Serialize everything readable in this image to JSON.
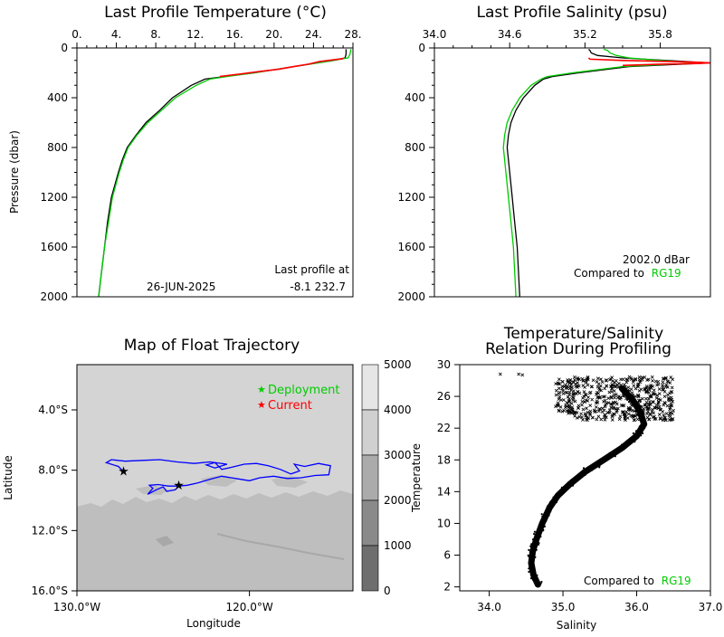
{
  "chart_data": [
    {
      "type": "line",
      "title": "Last Profile Temperature (°C)",
      "ylabel": "Pressure (dbar)",
      "xlim": [
        0,
        28
      ],
      "ylim": [
        2000,
        0
      ],
      "x_ticks": [
        "0.",
        "4.",
        "8.",
        "12.",
        "16.",
        "20.",
        "24.",
        "28."
      ],
      "y_ticks": [
        "0",
        "400",
        "800",
        "1200",
        "1600",
        "2000"
      ],
      "annotation_line1": "Last profile at",
      "annotation_date": "26-JUN-2025",
      "annotation_coords": "-8.1 232.7",
      "series": [
        {
          "color": "#000000",
          "pressure": [
            2000,
            1800,
            1600,
            1400,
            1200,
            1000,
            900,
            800,
            700,
            600,
            500,
            400,
            300,
            250,
            230,
            200,
            150,
            100,
            80,
            50,
            10
          ],
          "values": [
            2.2,
            2.5,
            2.8,
            3.1,
            3.5,
            4.2,
            4.6,
            5.1,
            6.0,
            7.0,
            8.4,
            9.7,
            11.6,
            13.0,
            15.0,
            18.0,
            22.0,
            26.0,
            27.2,
            27.3,
            27.3
          ]
        },
        {
          "color": "#00cc00",
          "pressure": [
            2000,
            1800,
            1600,
            1400,
            1200,
            1000,
            900,
            800,
            700,
            600,
            500,
            400,
            300,
            250,
            230,
            200,
            150,
            100,
            80,
            50,
            10
          ],
          "values": [
            2.2,
            2.5,
            2.8,
            3.2,
            3.6,
            4.3,
            4.7,
            5.2,
            6.1,
            7.2,
            8.6,
            10.0,
            12.1,
            13.5,
            15.2,
            18.0,
            22.0,
            26.0,
            27.5,
            27.7,
            27.8
          ]
        },
        {
          "color": "#ff0000",
          "pressure": [
            230,
            210,
            190,
            170,
            150,
            130,
            110,
            100,
            90,
            85
          ],
          "values": [
            14.5,
            16.5,
            18.5,
            20.5,
            22.0,
            23.5,
            24.6,
            25.5,
            26.5,
            27.0
          ]
        }
      ]
    },
    {
      "type": "line",
      "title": "Last Profile Salinity (psu)",
      "xlim": [
        34.0,
        36.2
      ],
      "ylim": [
        2000,
        0
      ],
      "x_ticks": [
        "34.0",
        "34.6",
        "35.2",
        "35.8"
      ],
      "y_ticks": [
        "0",
        "400",
        "800",
        "1200",
        "1600",
        "2000"
      ],
      "annotation_line1": "2002.0 dBar",
      "annotation_compared": "Compared to",
      "annotation_ref": "RG19",
      "series": [
        {
          "color": "#000000",
          "pressure": [
            2000,
            1800,
            1600,
            1400,
            1200,
            1000,
            800,
            700,
            600,
            500,
            400,
            300,
            250,
            230,
            200,
            150,
            120,
            100,
            80,
            60,
            40,
            20,
            10
          ],
          "values": [
            34.68,
            34.67,
            34.66,
            34.64,
            34.62,
            34.6,
            34.58,
            34.59,
            34.61,
            34.65,
            34.71,
            34.8,
            34.87,
            34.94,
            35.15,
            35.55,
            36.2,
            35.85,
            35.5,
            35.3,
            35.25,
            35.24,
            35.23
          ]
        },
        {
          "color": "#00cc00",
          "pressure": [
            2000,
            1800,
            1600,
            1400,
            1200,
            1000,
            800,
            700,
            600,
            500,
            400,
            300,
            250,
            230,
            200,
            150,
            120,
            100,
            80,
            60,
            40,
            20,
            10
          ],
          "values": [
            34.65,
            34.64,
            34.63,
            34.61,
            34.59,
            34.57,
            34.55,
            34.56,
            34.58,
            34.62,
            34.68,
            34.77,
            34.85,
            34.9,
            35.1,
            35.5,
            36.1,
            35.8,
            35.55,
            35.45,
            35.4,
            35.38,
            35.35
          ]
        },
        {
          "color": "#ff0000",
          "pressure": [
            80,
            90,
            100,
            110,
            115,
            120,
            125,
            130,
            140
          ],
          "values": [
            35.23,
            35.24,
            35.5,
            35.9,
            36.1,
            36.2,
            36.1,
            35.8,
            35.5
          ]
        }
      ]
    },
    {
      "type": "map",
      "title": "Map of Float Trajectory",
      "xlabel": "Longitude",
      "ylabel": "Latitude",
      "x_ticks": [
        "130.0°W",
        "120.0°W"
      ],
      "y_ticks": [
        "4.0°S",
        "8.0°S",
        "12.0°S",
        "16.0°S"
      ],
      "legend": [
        {
          "marker": "★",
          "label": "Deployment",
          "color": "#00cc00"
        },
        {
          "marker": "★",
          "label": "Current",
          "color": "#ff0000"
        }
      ],
      "colorbar_ticks": [
        "5000",
        "4000",
        "3000",
        "2000",
        "1000",
        "0"
      ],
      "colorbar_shades": [
        "#e6e6e6",
        "#d0d0d0",
        "#ababab",
        "#8a8a8a",
        "#6e6e6e",
        "#4d4d4d"
      ],
      "trajectory_color": "#0000ff",
      "deployment": {
        "lon": -124.1,
        "lat": -9.05
      },
      "current": {
        "lon": -127.3,
        "lat": -8.1
      },
      "trajectory": [
        [
          -124.1,
          -9.05
        ],
        [
          -124.3,
          -9.3
        ],
        [
          -124.8,
          -9.4
        ],
        [
          -125.0,
          -9.1
        ],
        [
          -125.4,
          -9.3
        ],
        [
          -125.9,
          -9.6
        ],
        [
          -125.6,
          -9.2
        ],
        [
          -125.8,
          -9.0
        ],
        [
          -125.3,
          -8.95
        ],
        [
          -124.7,
          -9.05
        ],
        [
          -124.1,
          -9.05
        ],
        [
          -123.6,
          -9.0
        ],
        [
          -123.0,
          -8.85
        ],
        [
          -122.3,
          -8.6
        ],
        [
          -121.6,
          -8.4
        ],
        [
          -120.8,
          -8.55
        ],
        [
          -120.0,
          -8.7
        ],
        [
          -119.4,
          -8.5
        ],
        [
          -118.6,
          -8.4
        ],
        [
          -117.8,
          -8.55
        ],
        [
          -117.0,
          -8.5
        ],
        [
          -116.2,
          -8.35
        ],
        [
          -115.4,
          -8.3
        ],
        [
          -115.3,
          -7.7
        ],
        [
          -116.0,
          -7.55
        ],
        [
          -116.8,
          -7.75
        ],
        [
          -117.4,
          -7.6
        ],
        [
          -117.1,
          -8.05
        ],
        [
          -117.6,
          -8.25
        ],
        [
          -118.2,
          -7.95
        ],
        [
          -118.9,
          -7.7
        ],
        [
          -119.6,
          -7.55
        ],
        [
          -120.3,
          -7.6
        ],
        [
          -121.0,
          -7.8
        ],
        [
          -121.6,
          -7.95
        ],
        [
          -122.0,
          -7.5
        ],
        [
          -122.5,
          -7.65
        ],
        [
          -122.0,
          -7.85
        ],
        [
          -121.3,
          -7.6
        ],
        [
          -122.3,
          -7.45
        ],
        [
          -123.2,
          -7.55
        ],
        [
          -124.2,
          -7.45
        ],
        [
          -125.2,
          -7.3
        ],
        [
          -126.2,
          -7.35
        ],
        [
          -127.2,
          -7.4
        ],
        [
          -128.0,
          -7.3
        ],
        [
          -128.3,
          -7.5
        ],
        [
          -127.6,
          -7.75
        ],
        [
          -127.3,
          -8.1
        ]
      ]
    },
    {
      "type": "scatter",
      "title_line1": "Temperature/Salinity",
      "title_line2": "Relation During Profiling",
      "xlabel": "Salinity",
      "ylabel": "Temperature",
      "xlim": [
        33.6,
        37.0
      ],
      "ylim": [
        1.5,
        30.0
      ],
      "x_ticks": [
        "34.0",
        "35.0",
        "36.0",
        "37.0"
      ],
      "y_ticks": [
        "2",
        "6",
        "10",
        "14",
        "18",
        "22",
        "26",
        "30"
      ],
      "annotation_compared": "Compared to",
      "annotation_ref": "RG19",
      "ts_curve": [
        [
          34.66,
          2.3
        ],
        [
          34.6,
          3.5
        ],
        [
          34.57,
          5.0
        ],
        [
          34.59,
          6.5
        ],
        [
          34.64,
          8.0
        ],
        [
          34.72,
          10.0
        ],
        [
          34.82,
          12.0
        ],
        [
          34.93,
          13.5
        ],
        [
          35.1,
          15.0
        ],
        [
          35.3,
          16.5
        ],
        [
          35.55,
          18.0
        ],
        [
          35.8,
          19.5
        ],
        [
          36.0,
          21.0
        ],
        [
          36.1,
          22.5
        ],
        [
          36.05,
          24.0
        ],
        [
          35.95,
          25.5
        ],
        [
          35.8,
          27.0
        ]
      ],
      "cloud": {
        "s_min": 34.9,
        "s_max": 36.5,
        "t_min": 23.0,
        "t_max": 28.5
      },
      "outliers": [
        [
          34.15,
          28.8
        ],
        [
          34.4,
          28.8
        ],
        [
          34.45,
          28.7
        ]
      ]
    }
  ]
}
